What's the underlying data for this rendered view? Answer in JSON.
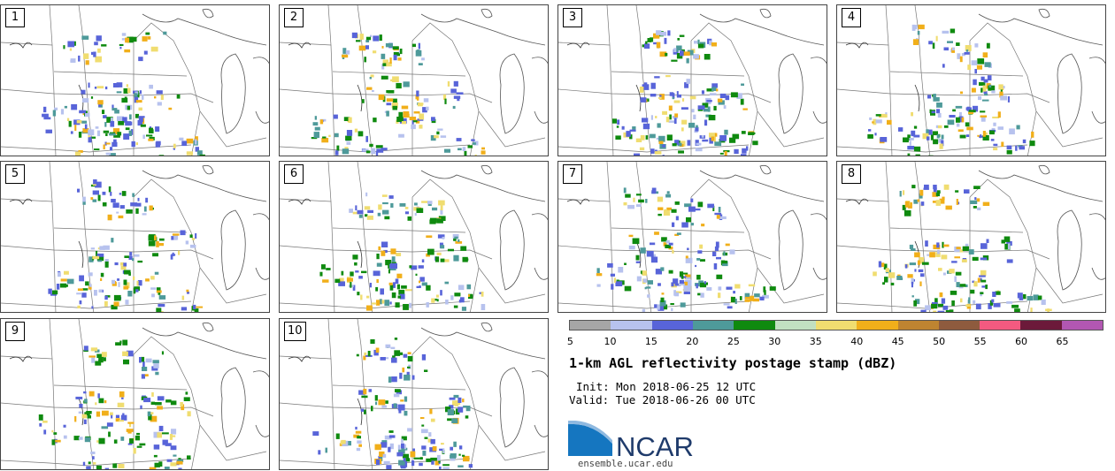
{
  "panels": [
    {
      "label": "1"
    },
    {
      "label": "2"
    },
    {
      "label": "3"
    },
    {
      "label": "4"
    },
    {
      "label": "5"
    },
    {
      "label": "6"
    },
    {
      "label": "7"
    },
    {
      "label": "8"
    },
    {
      "label": "9"
    },
    {
      "label": "10"
    }
  ],
  "colorbar": {
    "colors": [
      "#a6a6a6",
      "#b7c2ee",
      "#5864d9",
      "#4e9a9a",
      "#0f8a0f",
      "#c1e0c1",
      "#f0dd70",
      "#f1af1a",
      "#be8431",
      "#8e5b3e",
      "#f35a80",
      "#6c1a3a",
      "#b257b2"
    ],
    "ticks": [
      "5",
      "10",
      "15",
      "20",
      "25",
      "30",
      "35",
      "40",
      "45",
      "50",
      "55",
      "60",
      "65"
    ]
  },
  "title": "1-km AGL reflectivity postage stamp (dBZ)",
  "init": "Init: Mon 2018-06-25 12 UTC",
  "valid": "Valid: Tue 2018-06-26 00 UTC",
  "logo_text": "NCAR",
  "site": "ensemble.ucar.edu"
}
